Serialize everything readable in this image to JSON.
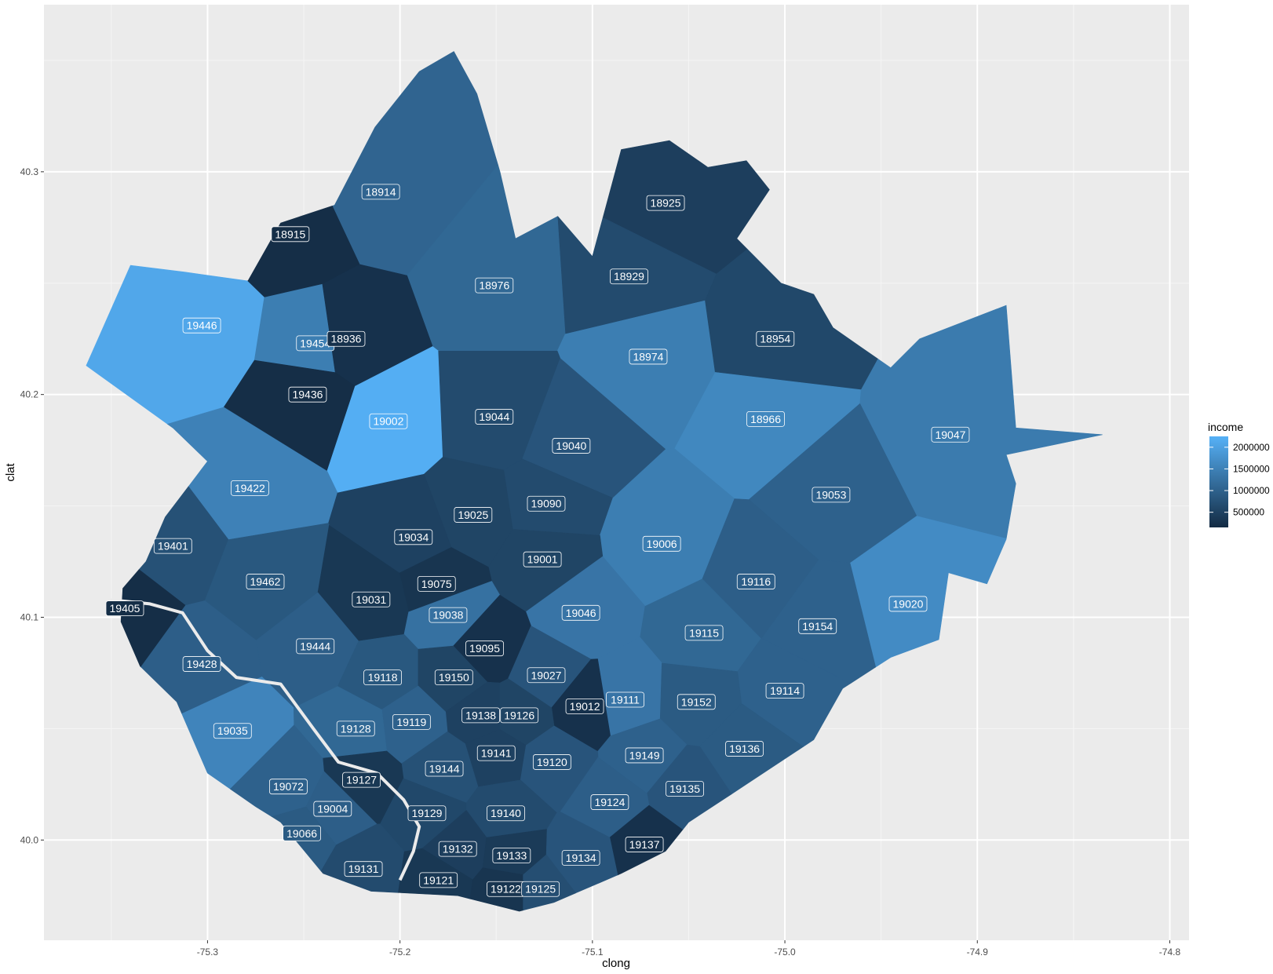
{
  "chart_data": {
    "type": "map",
    "xlabel": "clong",
    "ylabel": "clat",
    "xlim": [
      -75.385,
      -74.79
    ],
    "ylim": [
      39.955,
      40.375
    ],
    "x_ticks": [
      -75.3,
      -75.2,
      -75.1,
      -75.0,
      -74.9,
      -74.8
    ],
    "x_tick_labels": [
      "-75.3",
      "-75.2",
      "-75.1",
      "-75.0",
      "-74.9",
      "-74.8"
    ],
    "y_ticks": [
      40.0,
      40.1,
      40.2,
      40.3
    ],
    "y_tick_labels": [
      "40.0",
      "40.1",
      "40.2",
      "40.3"
    ],
    "grid": true,
    "legend": {
      "title": "income",
      "position": "right",
      "breaks": [
        2000000,
        1500000,
        1000000,
        500000
      ],
      "break_labels": [
        "2000000",
        "1500000",
        "1000000",
        "500000"
      ],
      "range": [
        150000,
        2250000
      ],
      "color_low": "#132b43",
      "color_high": "#56b1f7"
    },
    "regions": [
      {
        "zip": "18914",
        "lon": -75.21,
        "lat": 40.291,
        "income": 1050000
      },
      {
        "zip": "18915",
        "lon": -75.257,
        "lat": 40.272,
        "income": 200000
      },
      {
        "zip": "18925",
        "lon": -75.062,
        "lat": 40.286,
        "income": 450000
      },
      {
        "zip": "18929",
        "lon": -75.081,
        "lat": 40.253,
        "income": 650000
      },
      {
        "zip": "18976",
        "lon": -75.151,
        "lat": 40.249,
        "income": 1100000
      },
      {
        "zip": "19446",
        "lon": -75.303,
        "lat": 40.231,
        "income": 2100000
      },
      {
        "zip": "19454",
        "lon": -75.244,
        "lat": 40.223,
        "income": 1450000
      },
      {
        "zip": "18936",
        "lon": -75.228,
        "lat": 40.225,
        "income": 250000
      },
      {
        "zip": "18974",
        "lon": -75.071,
        "lat": 40.217,
        "income": 1450000
      },
      {
        "zip": "18954",
        "lon": -75.005,
        "lat": 40.225,
        "income": 600000
      },
      {
        "zip": "19436",
        "lon": -75.248,
        "lat": 40.2,
        "income": 200000
      },
      {
        "zip": "19002",
        "lon": -75.206,
        "lat": 40.188,
        "income": 2200000
      },
      {
        "zip": "19044",
        "lon": -75.151,
        "lat": 40.19,
        "income": 650000
      },
      {
        "zip": "18966",
        "lon": -75.01,
        "lat": 40.189,
        "income": 1600000
      },
      {
        "zip": "19047",
        "lon": -74.914,
        "lat": 40.182,
        "income": 1400000
      },
      {
        "zip": "19040",
        "lon": -75.111,
        "lat": 40.177,
        "income": 800000
      },
      {
        "zip": "19422",
        "lon": -75.278,
        "lat": 40.158,
        "income": 1500000
      },
      {
        "zip": "19053",
        "lon": -74.976,
        "lat": 40.155,
        "income": 1000000
      },
      {
        "zip": "19090",
        "lon": -75.124,
        "lat": 40.151,
        "income": 650000
      },
      {
        "zip": "19025",
        "lon": -75.162,
        "lat": 40.146,
        "income": 550000
      },
      {
        "zip": "19034",
        "lon": -75.193,
        "lat": 40.136,
        "income": 500000
      },
      {
        "zip": "19006",
        "lon": -75.064,
        "lat": 40.133,
        "income": 1450000
      },
      {
        "zip": "19401",
        "lon": -75.318,
        "lat": 40.132,
        "income": 750000
      },
      {
        "zip": "19001",
        "lon": -75.126,
        "lat": 40.126,
        "income": 550000
      },
      {
        "zip": "19462",
        "lon": -75.27,
        "lat": 40.116,
        "income": 850000
      },
      {
        "zip": "19116",
        "lon": -75.015,
        "lat": 40.116,
        "income": 950000
      },
      {
        "zip": "19075",
        "lon": -75.181,
        "lat": 40.115,
        "income": 300000
      },
      {
        "zip": "19031",
        "lon": -75.215,
        "lat": 40.108,
        "income": 350000
      },
      {
        "zip": "19405",
        "lon": -75.343,
        "lat": 40.104,
        "income": 200000
      },
      {
        "zip": "19020",
        "lon": -74.936,
        "lat": 40.106,
        "income": 1650000
      },
      {
        "zip": "19038",
        "lon": -75.175,
        "lat": 40.101,
        "income": 1250000
      },
      {
        "zip": "19046",
        "lon": -75.106,
        "lat": 40.102,
        "income": 1300000
      },
      {
        "zip": "19154",
        "lon": -74.983,
        "lat": 40.096,
        "income": 1000000
      },
      {
        "zip": "19115",
        "lon": -75.042,
        "lat": 40.093,
        "income": 1100000
      },
      {
        "zip": "19444",
        "lon": -75.244,
        "lat": 40.087,
        "income": 950000
      },
      {
        "zip": "19095",
        "lon": -75.156,
        "lat": 40.086,
        "income": 250000
      },
      {
        "zip": "19428",
        "lon": -75.303,
        "lat": 40.079,
        "income": 950000
      },
      {
        "zip": "19118",
        "lon": -75.209,
        "lat": 40.073,
        "income": 850000
      },
      {
        "zip": "19150",
        "lon": -75.172,
        "lat": 40.073,
        "income": 550000
      },
      {
        "zip": "19027",
        "lon": -75.124,
        "lat": 40.074,
        "income": 800000
      },
      {
        "zip": "19114",
        "lon": -75.0,
        "lat": 40.067,
        "income": 1000000
      },
      {
        "zip": "19111",
        "lon": -75.083,
        "lat": 40.063,
        "income": 1300000
      },
      {
        "zip": "19152",
        "lon": -75.046,
        "lat": 40.062,
        "income": 900000
      },
      {
        "zip": "19012",
        "lon": -75.104,
        "lat": 40.06,
        "income": 250000
      },
      {
        "zip": "19138",
        "lon": -75.158,
        "lat": 40.056,
        "income": 500000
      },
      {
        "zip": "19126",
        "lon": -75.138,
        "lat": 40.056,
        "income": 550000
      },
      {
        "zip": "19119",
        "lon": -75.194,
        "lat": 40.053,
        "income": 1000000
      },
      {
        "zip": "19035",
        "lon": -75.287,
        "lat": 40.049,
        "income": 1550000
      },
      {
        "zip": "19128",
        "lon": -75.223,
        "lat": 40.05,
        "income": 1100000
      },
      {
        "zip": "19136",
        "lon": -75.021,
        "lat": 40.041,
        "income": 900000
      },
      {
        "zip": "19149",
        "lon": -75.073,
        "lat": 40.038,
        "income": 1000000
      },
      {
        "zip": "19141",
        "lon": -75.15,
        "lat": 40.039,
        "income": 500000
      },
      {
        "zip": "19120",
        "lon": -75.121,
        "lat": 40.035,
        "income": 800000
      },
      {
        "zip": "19144",
        "lon": -75.177,
        "lat": 40.032,
        "income": 750000
      },
      {
        "zip": "19127",
        "lon": -75.22,
        "lat": 40.027,
        "income": 350000
      },
      {
        "zip": "19072",
        "lon": -75.258,
        "lat": 40.024,
        "income": 1000000
      },
      {
        "zip": "19135",
        "lon": -75.052,
        "lat": 40.023,
        "income": 800000
      },
      {
        "zip": "19124",
        "lon": -75.091,
        "lat": 40.017,
        "income": 950000
      },
      {
        "zip": "19004",
        "lon": -75.235,
        "lat": 40.014,
        "income": 950000
      },
      {
        "zip": "19129",
        "lon": -75.186,
        "lat": 40.012,
        "income": 600000
      },
      {
        "zip": "19140",
        "lon": -75.145,
        "lat": 40.012,
        "income": 650000
      },
      {
        "zip": "19066",
        "lon": -75.251,
        "lat": 40.003,
        "income": 900000
      },
      {
        "zip": "19137",
        "lon": -75.073,
        "lat": 39.998,
        "income": 250000
      },
      {
        "zip": "19132",
        "lon": -75.17,
        "lat": 39.996,
        "income": 450000
      },
      {
        "zip": "19133",
        "lon": -75.142,
        "lat": 39.993,
        "income": 400000
      },
      {
        "zip": "19134",
        "lon": -75.106,
        "lat": 39.992,
        "income": 800000
      },
      {
        "zip": "19131",
        "lon": -75.219,
        "lat": 39.987,
        "income": 650000
      },
      {
        "zip": "19121",
        "lon": -75.18,
        "lat": 39.982,
        "income": 350000
      },
      {
        "zip": "19122",
        "lon": -75.145,
        "lat": 39.978,
        "income": 300000
      },
      {
        "zip": "19125",
        "lon": -75.127,
        "lat": 39.978,
        "income": 700000
      }
    ]
  }
}
